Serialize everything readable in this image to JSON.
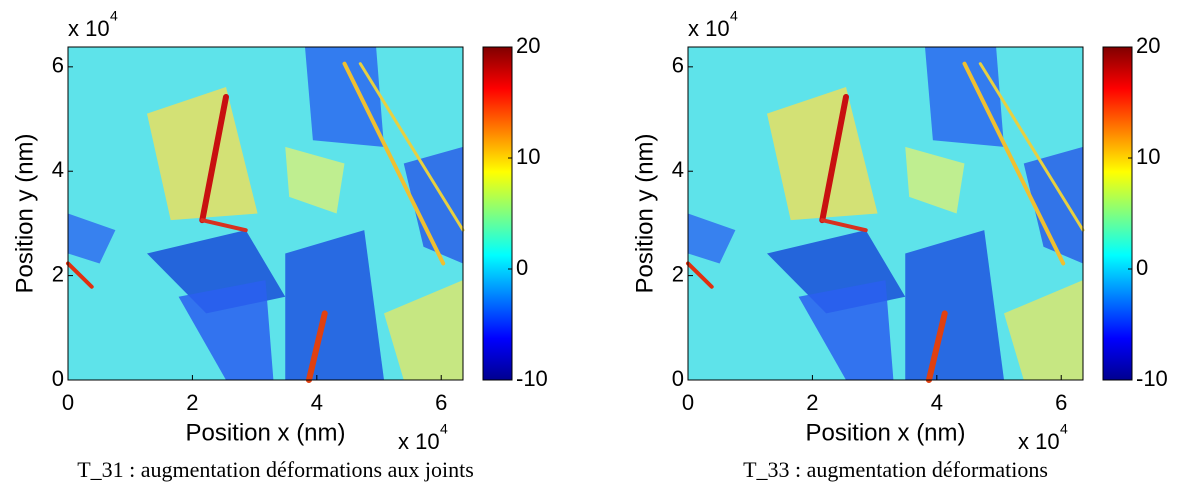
{
  "chart_data": [
    {
      "type": "heatmap",
      "caption": "T_31 : augmentation déformations aux joints",
      "xlabel": "Position x (nm)",
      "ylabel": "Position y (nm)",
      "x_multiplier": {
        "text": "x 10",
        "exponent": "4"
      },
      "y_multiplier": {
        "text": "x 10",
        "exponent": "4"
      },
      "xlim": [
        0,
        6.35
      ],
      "xticks": [
        0,
        2,
        4,
        6
      ],
      "ylim": [
        0,
        6.38
      ],
      "yticks": [
        0,
        2,
        4,
        6
      ],
      "colorbar": {
        "colormap": "jet",
        "lim": [
          -10,
          20
        ],
        "ticks": [
          -10,
          0,
          10,
          20
        ]
      }
    },
    {
      "type": "heatmap",
      "caption": "T_33 : augmentation déformations",
      "xlabel": "Position x (nm)",
      "ylabel": "Position y (nm)",
      "x_multiplier": {
        "text": "x 10",
        "exponent": "4"
      },
      "y_multiplier": {
        "text": "x 10",
        "exponent": "4"
      },
      "xlim": [
        0,
        6.35
      ],
      "xticks": [
        0,
        2,
        4,
        6
      ],
      "ylim": [
        0,
        6.38
      ],
      "yticks": [
        0,
        2,
        4,
        6
      ],
      "colorbar": {
        "colormap": "jet",
        "lim": [
          -10,
          20
        ],
        "ticks": [
          -10,
          0,
          10,
          20
        ]
      }
    }
  ]
}
